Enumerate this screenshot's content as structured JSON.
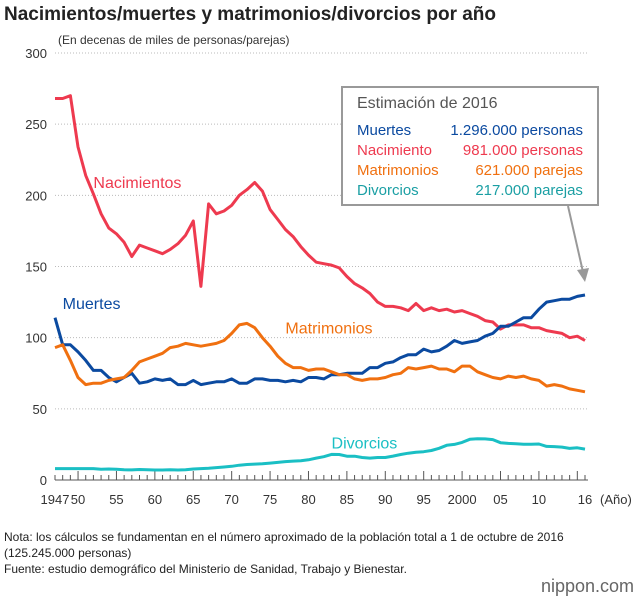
{
  "chart_data": {
    "type": "line",
    "title": "Nacimientos/muertes y matrimonios/divorcios por año",
    "ylabel": "(En decenas de miles de personas/parejas)",
    "xlabel": "(Año)",
    "ylim": [
      0,
      300
    ],
    "yticks": [
      "0",
      "50",
      "100",
      "150",
      "200",
      "250",
      "300"
    ],
    "xrange": [
      1947,
      2016
    ],
    "xtick_labels": [
      {
        "year": 1947,
        "label": "1947"
      },
      {
        "year": 1950,
        "label": "50"
      },
      {
        "year": 1955,
        "label": "55"
      },
      {
        "year": 1960,
        "label": "60"
      },
      {
        "year": 1965,
        "label": "65"
      },
      {
        "year": 1970,
        "label": "70"
      },
      {
        "year": 1975,
        "label": "75"
      },
      {
        "year": 1980,
        "label": "80"
      },
      {
        "year": 1985,
        "label": "85"
      },
      {
        "year": 1990,
        "label": "90"
      },
      {
        "year": 1995,
        "label": "95"
      },
      {
        "year": 2000,
        "label": "2000"
      },
      {
        "year": 2005,
        "label": "05"
      },
      {
        "year": 2010,
        "label": "10"
      },
      {
        "year": 2016,
        "label": "16"
      }
    ],
    "series": [
      {
        "name": "Nacimientos",
        "color": "#ee3a4f",
        "label_year": 1952,
        "label_value": 205,
        "values": [
          268,
          268,
          270,
          234,
          214,
          201,
          187,
          177,
          173,
          167,
          157,
          165,
          163,
          161,
          159,
          162,
          166,
          172,
          182,
          136,
          194,
          187,
          189,
          193,
          200,
          204,
          209,
          203,
          190,
          183,
          176,
          171,
          164,
          158,
          153,
          152,
          151,
          149,
          143,
          138,
          135,
          131,
          125,
          122,
          122,
          121,
          119,
          124,
          119,
          121,
          119,
          120,
          118,
          119,
          117,
          115,
          112,
          111,
          106,
          109,
          109,
          109,
          107,
          107,
          105,
          104,
          103,
          100,
          101,
          98
        ]
      },
      {
        "name": "Muertes",
        "color": "#0b4aa0",
        "label_year": 1948,
        "label_value": 120,
        "values": [
          114,
          95,
          95,
          90,
          84,
          77,
          77,
          72,
          69,
          72,
          75,
          68,
          69,
          71,
          70,
          71,
          67,
          67,
          70,
          67,
          68,
          69,
          69,
          71,
          68,
          68,
          71,
          71,
          70,
          70,
          69,
          70,
          69,
          72,
          72,
          71,
          74,
          74,
          75,
          75,
          75,
          79,
          79,
          82,
          83,
          86,
          88,
          88,
          92,
          90,
          91,
          94,
          98,
          96,
          97,
          98,
          101,
          103,
          108,
          108,
          111,
          114,
          114,
          120,
          125,
          126,
          127,
          127,
          129,
          130
        ]
      },
      {
        "name": "Matrimonios",
        "color": "#f07010",
        "label_year": 1977,
        "label_value": 103,
        "values": [
          93,
          95,
          84,
          72,
          67,
          68,
          68,
          70,
          71,
          72,
          77,
          83,
          85,
          87,
          89,
          93,
          94,
          96,
          95,
          94,
          95,
          96,
          98,
          103,
          109,
          110,
          107,
          100,
          94,
          87,
          82,
          79,
          79,
          77,
          78,
          78,
          76,
          74,
          74,
          71,
          70,
          71,
          71,
          72,
          74,
          75,
          79,
          78,
          79,
          80,
          78,
          78,
          76,
          80,
          80,
          76,
          74,
          72,
          71,
          73,
          72,
          73,
          71,
          70,
          66,
          67,
          66,
          64,
          63,
          62
        ]
      },
      {
        "name": "Divorcios",
        "color": "#1abfc4",
        "label_year": 1983,
        "label_value": 22,
        "values": [
          8,
          8,
          8,
          8,
          8,
          8,
          7.5,
          7.7,
          7.5,
          7.2,
          7.1,
          7.4,
          7.2,
          7,
          7,
          7.2,
          7,
          7.2,
          7.7,
          8,
          8.3,
          8.7,
          9.1,
          9.6,
          10.4,
          10.9,
          11.2,
          11.4,
          11.9,
          12.4,
          12.9,
          13.3,
          13.5,
          14.2,
          15.4,
          16.4,
          18,
          17.9,
          16.7,
          16.7,
          15.8,
          15.4,
          15.8,
          15.8,
          16.8,
          17.9,
          18.8,
          19.5,
          19.9,
          20.7,
          22.3,
          24.4,
          25,
          26.4,
          28.6,
          29,
          28.9,
          28.4,
          26.2,
          25.7,
          25.5,
          25.1,
          25.1,
          25.3,
          23.6,
          23.5,
          23.1,
          22.2,
          22.6,
          21.7
        ]
      }
    ],
    "annotation": {
      "title": "Estimación de 2016",
      "rows": [
        {
          "name": "Muertes",
          "value": "1.296.000 personas",
          "color": "#0b4aa0"
        },
        {
          "name": "Nacimiento",
          "value": "  981.000 personas",
          "color": "#ee3a4f"
        },
        {
          "name": "Matrimonios",
          "value": "  621.000 parejas",
          "color": "#f07010"
        },
        {
          "name": "Divorcios",
          "value": "  217.000 parejas",
          "color": "#1a9fa4"
        }
      ]
    }
  },
  "notes": {
    "line1": "Nota: los cálculos se fundamentan en el número aproximado de la población total a 1 de octubre de 2016",
    "line2": "(125.245.000 personas)",
    "line3": "Fuente: estudio demográfico del Ministerio de Sanidad, Trabajo y Bienestar."
  },
  "logo": "nippon.com"
}
